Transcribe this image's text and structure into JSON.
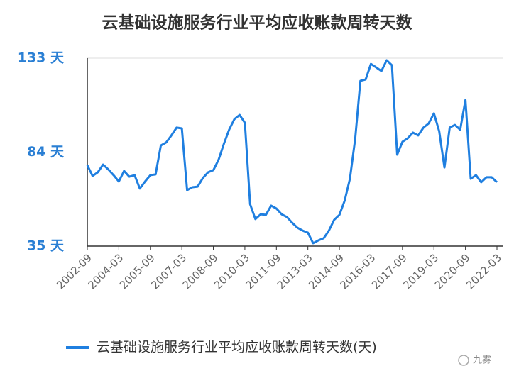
{
  "chart_data": {
    "type": "line",
    "title": "云基础设施服务行业平均应收账款周转天数",
    "categories": [
      "2002-09",
      null,
      null,
      null,
      null,
      null,
      "2004-03",
      null,
      null,
      null,
      null,
      null,
      "2005-09",
      null,
      null,
      null,
      null,
      null,
      "2007-03",
      null,
      null,
      null,
      null,
      null,
      "2008-09",
      null,
      null,
      null,
      null,
      null,
      "2010-03",
      null,
      null,
      null,
      null,
      null,
      "2011-09",
      null,
      null,
      null,
      null,
      null,
      "2013-03",
      null,
      null,
      null,
      null,
      null,
      "2014-09",
      null,
      null,
      null,
      null,
      null,
      "2016-03",
      null,
      null,
      null,
      null,
      null,
      "2017-09",
      null,
      null,
      null,
      null,
      null,
      "2019-03",
      null,
      null,
      null,
      null,
      null,
      "2020-09",
      null,
      null,
      null,
      null,
      null,
      "2022-03"
    ],
    "series": [
      {
        "name": "云基础设施服务行业平均应收账款周转天数(天)",
        "color": "#1f7fe0",
        "values": [
          77.2,
          71.6,
          73.5,
          77.5,
          75,
          72,
          68.7,
          74.2,
          71.2,
          72,
          65,
          68.7,
          72,
          72.4,
          87.5,
          89,
          92.7,
          96.8,
          96.4,
          64.2,
          65.7,
          66,
          70.5,
          73.5,
          74.6,
          80.1,
          88.3,
          95.7,
          101.2,
          103.4,
          99.3,
          56.8,
          49.1,
          51.6,
          51.3,
          56.1,
          54.6,
          51.6,
          50.2,
          47.2,
          44.6,
          43.1,
          42,
          36.5,
          38,
          39.1,
          43.1,
          48.7,
          51.3,
          58.7,
          70.1,
          90.8,
          121.2,
          121.9,
          130,
          128.2,
          126.3,
          131.9,
          129.3,
          82.7,
          89.4,
          91.2,
          94.2,
          92.7,
          96.8,
          99,
          104.2,
          94.9,
          76,
          96.8,
          98.2,
          95.7,
          111.2,
          70.1,
          72,
          68.3,
          70.9,
          70.9,
          68.3
        ]
      }
    ],
    "ylim": [
      35,
      133
    ],
    "yticks": [
      {
        "value": 35,
        "label": "35 天"
      },
      {
        "value": 84,
        "label": "84 天"
      },
      {
        "value": 133,
        "label": "133 天"
      }
    ],
    "grid": true
  },
  "watermark": "九雾"
}
